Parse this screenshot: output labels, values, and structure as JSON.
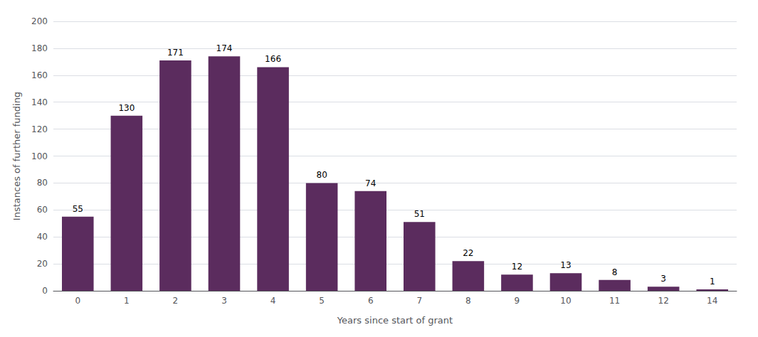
{
  "chart_data": {
    "type": "bar",
    "categories": [
      "0",
      "1",
      "2",
      "3",
      "4",
      "5",
      "6",
      "7",
      "8",
      "9",
      "10",
      "11",
      "12",
      "14"
    ],
    "values": [
      55,
      130,
      171,
      174,
      166,
      80,
      74,
      51,
      22,
      12,
      13,
      8,
      3,
      1
    ],
    "color": "#5b2c5e",
    "xlabel": "Years since start of grant",
    "ylabel": "Instances of further funding",
    "ylim": [
      0,
      200
    ],
    "yticks": [
      0,
      20,
      40,
      60,
      80,
      100,
      120,
      140,
      160,
      180,
      200
    ],
    "grid": true,
    "data_labels": true
  }
}
